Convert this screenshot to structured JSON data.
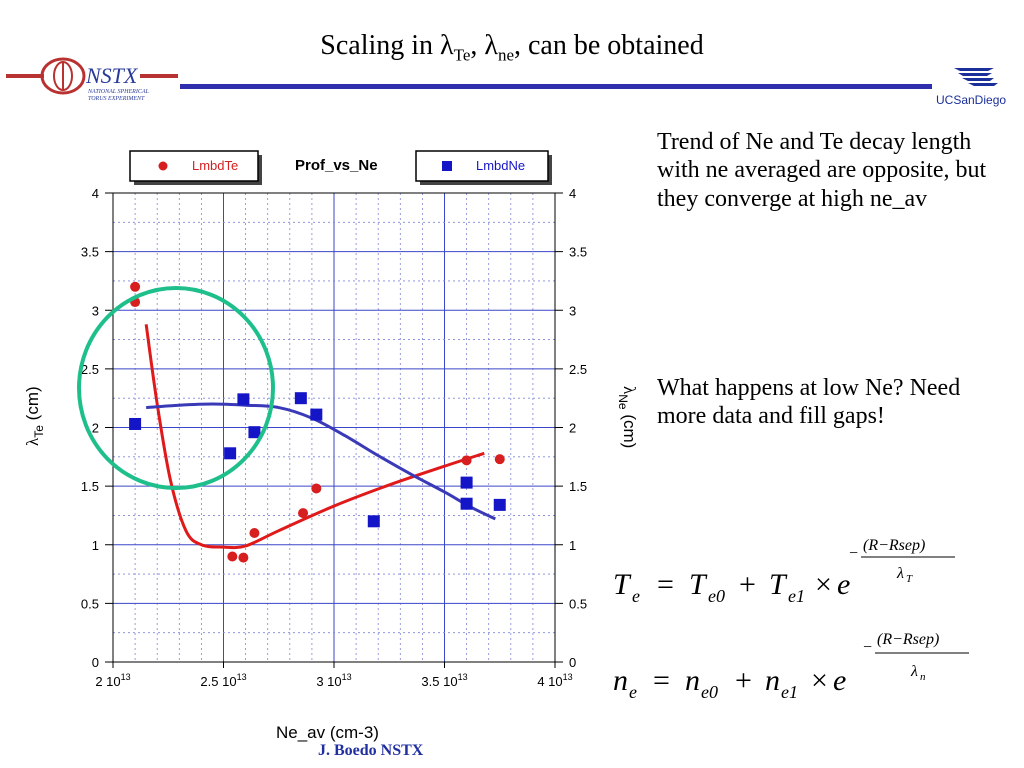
{
  "title": {
    "text": "Scaling in ",
    "sym1": "λ",
    "sub1": "Te",
    "sep": ", ",
    "sym2": "λ",
    "sub2": "ne",
    "rest": ", can be obtained"
  },
  "logos": {
    "nstx_main": "NSTX",
    "nstx_line1": "NATIONAL SPHERICAL",
    "nstx_line2": "TORUS EXPERIMENT",
    "ucsd": "UCSanDiego"
  },
  "notes": {
    "trend": "Trend of Ne and Te decay length with ne averaged are opposite, but they converge at high ne_av",
    "question": "What happens at low Ne? Need more data and fill gaps!"
  },
  "footer": "J. Boedo NSTX",
  "equations": {
    "te_lhs": "T",
    "te_sub": "e",
    "te_rhs_a": "T",
    "te_rhs_a_sub": "e0",
    "te_rhs_b": "T",
    "te_rhs_b_sub": "e1",
    "te_exp_num": "(R−Rsep)",
    "te_exp_den": "λ",
    "te_exp_den_sub": "T",
    "ne_lhs": "n",
    "ne_sub": "e",
    "ne_rhs_a": "n",
    "ne_rhs_a_sub": "e0",
    "ne_rhs_b": "n",
    "ne_rhs_b_sub": "e1",
    "ne_exp_num": "(R−Rsep)",
    "ne_exp_den": "λ",
    "ne_exp_den_sub": "n",
    "base": "e",
    "minus": "−",
    "equals": "=",
    "plus": "+",
    "times": "×"
  },
  "chart_data": {
    "type": "scatter",
    "title": "Prof_vs_Ne",
    "xlabel": "Ne_av (cm-3)",
    "ylabel_left": {
      "sym": "λ",
      "sub": "Te",
      "unit": " (cm)"
    },
    "ylabel_right": {
      "sym": "λ",
      "sub": "Ne",
      "unit": " (cm)"
    },
    "xlim": [
      20000000000000.0,
      40000000000000.0
    ],
    "ylim": [
      0,
      4
    ],
    "grid": true,
    "x_ticks": [
      {
        "value": 20000000000000.0,
        "mant": "2 10",
        "exp": "13"
      },
      {
        "value": 25000000000000.0,
        "mant": "2.5 10",
        "exp": "13"
      },
      {
        "value": 30000000000000.0,
        "mant": "3 10",
        "exp": "13"
      },
      {
        "value": 35000000000000.0,
        "mant": "3.5 10",
        "exp": "13"
      },
      {
        "value": 40000000000000.0,
        "mant": "4 10",
        "exp": "13"
      }
    ],
    "y_ticks": [
      {
        "value": 0,
        "label": "0"
      },
      {
        "value": 0.5,
        "label": "0.5"
      },
      {
        "value": 1,
        "label": "1"
      },
      {
        "value": 1.5,
        "label": "1.5"
      },
      {
        "value": 2,
        "label": "2"
      },
      {
        "value": 2.5,
        "label": "2.5"
      },
      {
        "value": 3,
        "label": "3"
      },
      {
        "value": 3.5,
        "label": "3.5"
      },
      {
        "value": 4,
        "label": "4"
      }
    ],
    "series": [
      {
        "name": "LmbdTe",
        "marker": "circle",
        "color": "#d71f1f",
        "points": [
          [
            21000000000000.0,
            3.2
          ],
          [
            21000000000000.0,
            3.07
          ],
          [
            25400000000000.0,
            0.9
          ],
          [
            25900000000000.0,
            0.89
          ],
          [
            26400000000000.0,
            1.1
          ],
          [
            28600000000000.0,
            1.27
          ],
          [
            29200000000000.0,
            1.48
          ],
          [
            36000000000000.0,
            1.72
          ],
          [
            37500000000000.0,
            1.73
          ]
        ],
        "fit": [
          [
            21500000000000.0,
            2.88
          ],
          [
            22000000000000.0,
            2.2
          ],
          [
            22600000000000.0,
            1.55
          ],
          [
            23300000000000.0,
            1.12
          ],
          [
            24000000000000.0,
            1.0
          ],
          [
            25000000000000.0,
            0.98
          ],
          [
            26000000000000.0,
            0.99
          ],
          [
            27500000000000.0,
            1.12
          ],
          [
            30000000000000.0,
            1.33
          ],
          [
            32500000000000.0,
            1.51
          ],
          [
            35000000000000.0,
            1.67
          ],
          [
            36800000000000.0,
            1.78
          ]
        ]
      },
      {
        "name": "LmbdNe",
        "marker": "square",
        "color": "#1515c8",
        "points": [
          [
            21000000000000.0,
            2.03
          ],
          [
            25300000000000.0,
            1.78
          ],
          [
            25900000000000.0,
            2.24
          ],
          [
            26400000000000.0,
            1.96
          ],
          [
            28500000000000.0,
            2.25
          ],
          [
            29200000000000.0,
            2.11
          ],
          [
            31800000000000.0,
            1.2
          ],
          [
            36000000000000.0,
            1.53
          ],
          [
            36000000000000.0,
            1.35
          ],
          [
            37500000000000.0,
            1.34
          ]
        ],
        "fit": [
          [
            21500000000000.0,
            2.17
          ],
          [
            23000000000000.0,
            2.19
          ],
          [
            24500000000000.0,
            2.2
          ],
          [
            26000000000000.0,
            2.19
          ],
          [
            27500000000000.0,
            2.17
          ],
          [
            29000000000000.0,
            2.08
          ],
          [
            30500000000000.0,
            1.93
          ],
          [
            32000000000000.0,
            1.76
          ],
          [
            33500000000000.0,
            1.6
          ],
          [
            35000000000000.0,
            1.45
          ],
          [
            36200000000000.0,
            1.32
          ],
          [
            37300000000000.0,
            1.22
          ]
        ]
      }
    ],
    "annotation": {
      "shape": "circle",
      "color": "#1fbf8c"
    }
  }
}
